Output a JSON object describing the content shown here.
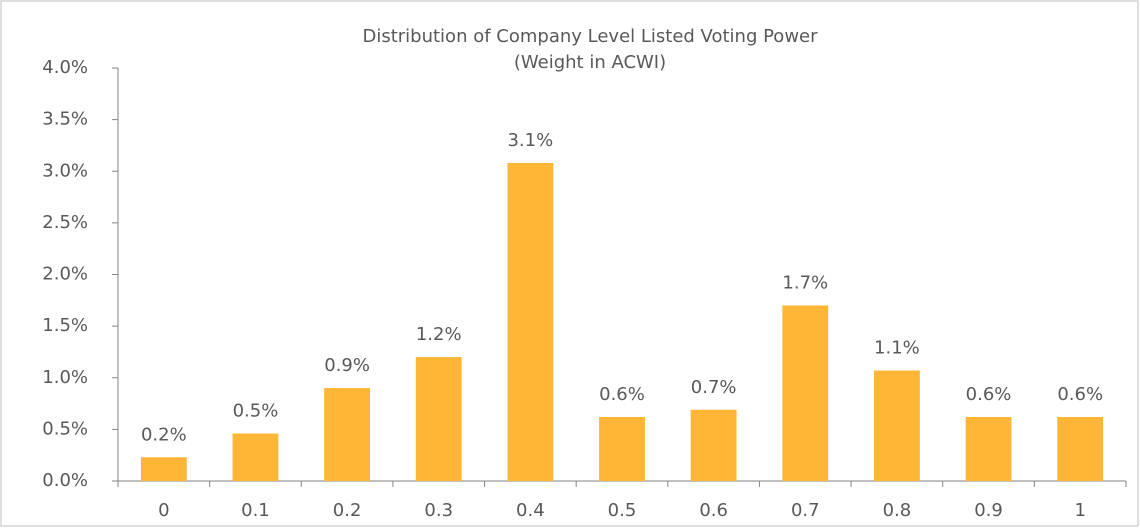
{
  "chart_data": {
    "type": "bar",
    "title": "Distribution of Company Level Listed Voting Power",
    "subtitle": "(Weight in ACWI)",
    "categories": [
      "0",
      "0.1",
      "0.2",
      "0.3",
      "0.4",
      "0.5",
      "0.6",
      "0.7",
      "0.8",
      "0.9",
      "1"
    ],
    "values": [
      0.23,
      0.46,
      0.9,
      1.2,
      3.08,
      0.62,
      0.69,
      1.7,
      1.07,
      0.62,
      0.62
    ],
    "value_labels": [
      "0.2%",
      "0.5%",
      "0.9%",
      "1.2%",
      "3.1%",
      "0.6%",
      "0.7%",
      "1.7%",
      "1.1%",
      "0.6%",
      "0.6%"
    ],
    "color": "#ffb535",
    "ylim": [
      0,
      4
    ],
    "yticks": [
      {
        "value": 0,
        "label": "0.0%"
      },
      {
        "value": 0.5,
        "label": "0.5%"
      },
      {
        "value": 1,
        "label": "1.0%"
      },
      {
        "value": 1.5,
        "label": "1.5%"
      },
      {
        "value": 2,
        "label": "2.0%"
      },
      {
        "value": 2.5,
        "label": "2.5%"
      },
      {
        "value": 3,
        "label": "3.0%"
      },
      {
        "value": 3.5,
        "label": "3.5%"
      },
      {
        "value": 4,
        "label": "4.0%"
      }
    ],
    "grid": false
  }
}
